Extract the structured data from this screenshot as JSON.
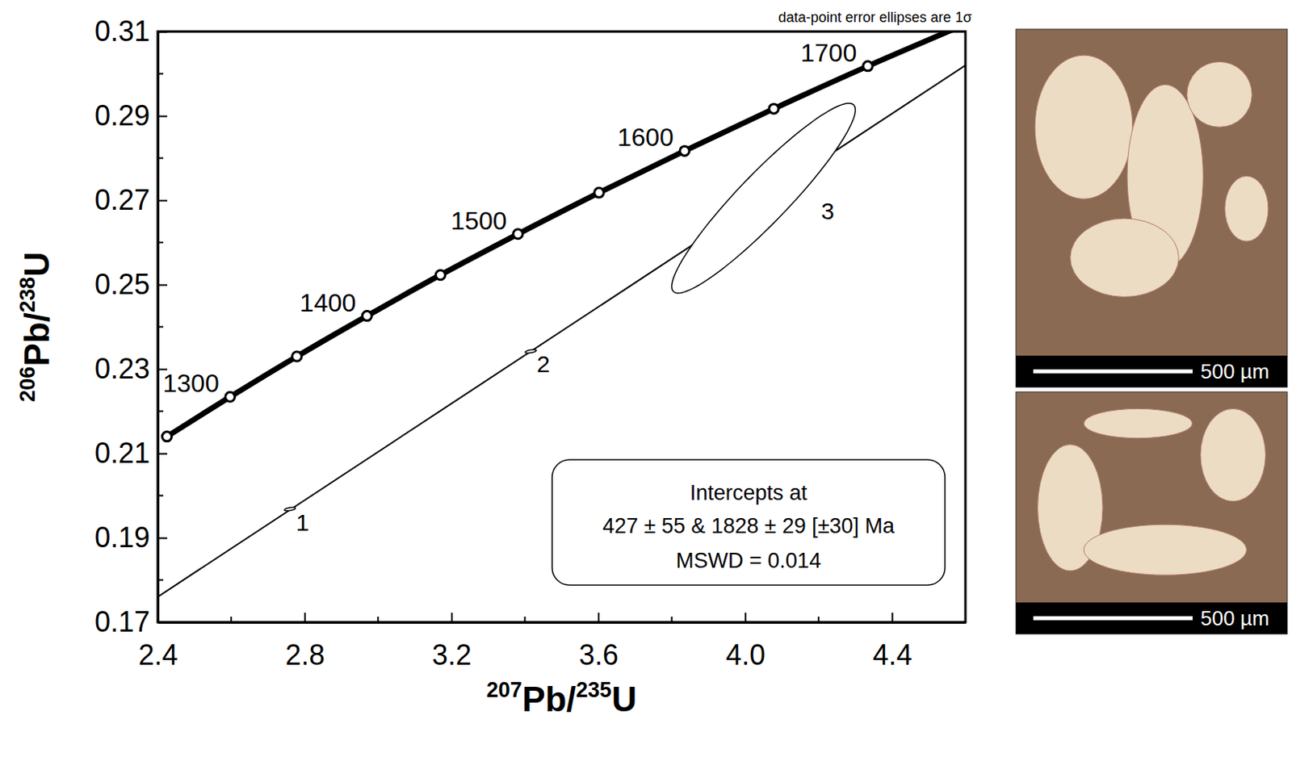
{
  "chart_data": {
    "type": "concordia",
    "note": "data-point error ellipses are 1σ",
    "x_label": "207Pb/235U",
    "y_label": "206Pb/238U",
    "xlim": [
      2.4,
      4.6
    ],
    "ylim": [
      0.17,
      0.31
    ],
    "xticks": [
      2.4,
      2.8,
      3.2,
      3.6,
      {
        "value": 4,
        "label": "4.0"
      },
      4.4
    ],
    "yticks": [
      0.17,
      0.19,
      0.21,
      0.23,
      0.25,
      0.27,
      0.29,
      0.31
    ],
    "xminorticks": [
      2.6,
      3,
      3.4,
      3.8,
      4.2
    ],
    "yminorticks": [
      0.18,
      0.2,
      0.22,
      0.24,
      0.26,
      0.28,
      0.3
    ],
    "concordia": {
      "x": [
        2.425,
        2.597,
        2.779,
        2.97,
        3.17,
        3.381,
        3.602,
        3.835,
        4.078,
        4.334,
        4.604
      ],
      "y": [
        0.214,
        0.2234,
        0.233,
        0.2426,
        0.2523,
        0.262,
        0.2718,
        0.2817,
        0.2917,
        0.3018,
        0.3119
      ],
      "age_labels": [
        null,
        1300,
        null,
        1400,
        null,
        1500,
        null,
        1600,
        null,
        1700,
        null
      ]
    },
    "discordia": {
      "x": [
        2.4,
        4.6
      ],
      "y": [
        0.176,
        0.302
      ]
    },
    "points": {
      "labels": [
        1,
        2,
        3
      ],
      "x": [
        2.76,
        3.416,
        4.05
      ],
      "y": [
        0.1968,
        0.2342,
        0.2705
      ],
      "x_err": [
        0.015,
        0.015,
        0.25
      ],
      "y_err": [
        0.0004,
        0.0004,
        0.0225
      ],
      "rho": [
        0.5,
        0.5,
        0.93
      ]
    },
    "intercept_box": [
      "Intercepts at",
      "427 ± 55 & 1828 ± 29 [±30] Ma",
      "MSWD = 0.014"
    ]
  },
  "photos": [
    {
      "scale_label": "500 µm"
    },
    {
      "scale_label": "500 µm"
    }
  ]
}
